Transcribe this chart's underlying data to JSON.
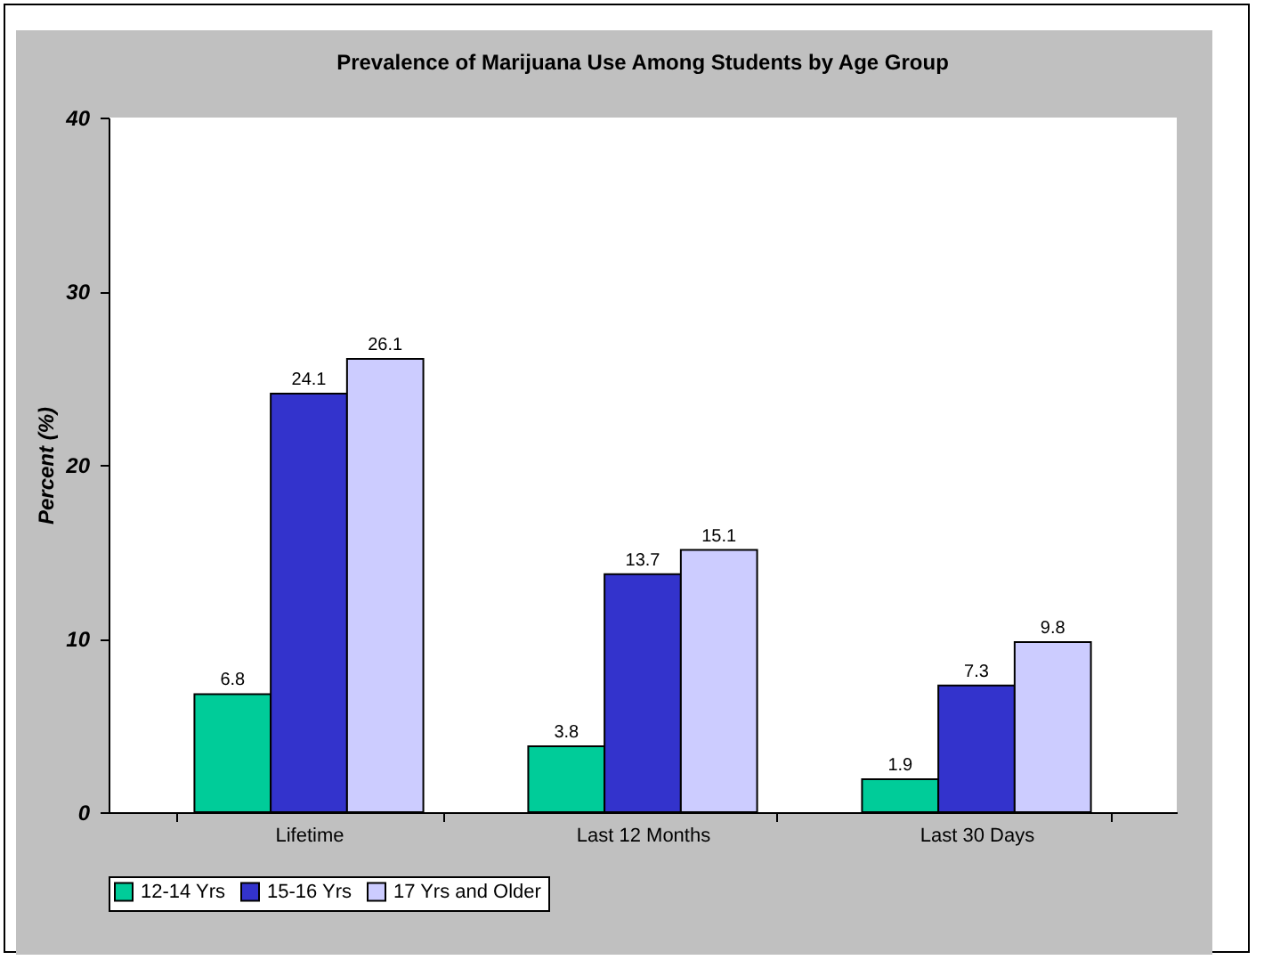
{
  "chart_data": {
    "type": "bar",
    "title": "Prevalence of Marijuana Use Among Students by Age Group",
    "ylabel": "Percent (%)",
    "categories": [
      "Lifetime",
      "Last 12 Months",
      "Last 30 Days"
    ],
    "series": [
      {
        "name": "12-14 Yrs",
        "color": "#00cc99",
        "values": [
          6.8,
          3.8,
          1.9
        ]
      },
      {
        "name": "15-16 Yrs",
        "color": "#3333cc",
        "values": [
          24.1,
          13.7,
          7.3
        ]
      },
      {
        "name": "17 Yrs and Older",
        "color": "#ccccff",
        "values": [
          26.1,
          15.1,
          9.8
        ]
      }
    ],
    "ylim": [
      0,
      40
    ],
    "yticks": [
      0,
      10,
      20,
      30,
      40
    ],
    "data_labels": true,
    "legend": "bottom"
  }
}
